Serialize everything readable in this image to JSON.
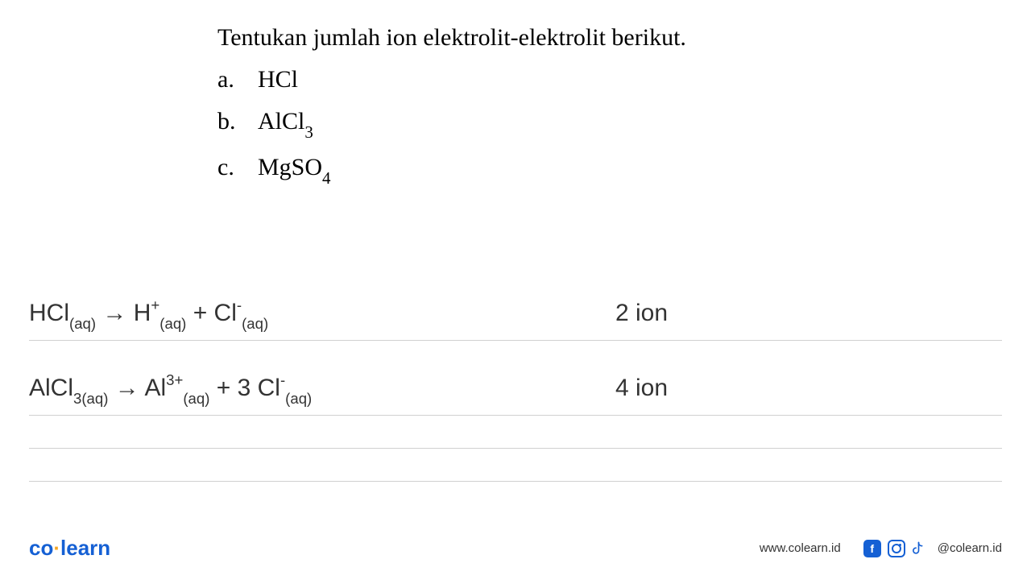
{
  "question": {
    "title": "Tentukan jumlah ion elektrolit-elektrolit berikut.",
    "items": [
      {
        "letter": "a.",
        "formula_html": "HCl"
      },
      {
        "letter": "b.",
        "formula_html": "AlCl<span class=\"sub\">3</span>"
      },
      {
        "letter": "c.",
        "formula_html": "MgSO<span class=\"sub\">4</span>"
      }
    ]
  },
  "answers": [
    {
      "equation_html": "HCl<span class=\"eq-sub\">(aq)</span> <span class=\"arrow\">→</span> H<span class=\"eq-sup\">+</span><span class=\"eq-sub\">(aq)</span> + Cl<span class=\"eq-sup\">-</span><span class=\"eq-sub\">(aq)</span>",
      "ion_count": "2 ion"
    },
    {
      "equation_html": "AlCl<span class=\"eq-sub\">3(aq)</span> <span class=\"arrow\">→</span> Al<span class=\"eq-sup\">3+</span><span class=\"eq-sub\">(aq)</span> + 3 Cl<span class=\"eq-sup\">-</span><span class=\"eq-sub\">(aq)</span>",
      "ion_count": "4 ion"
    }
  ],
  "footer": {
    "logo_co": "co",
    "logo_learn": "learn",
    "website": "www.colearn.id",
    "handle": "@colearn.id"
  },
  "colors": {
    "text": "#000000",
    "line": "#d0d0d0",
    "brand_blue": "#1560d4",
    "brand_orange": "#f5a623",
    "background": "#ffffff"
  }
}
